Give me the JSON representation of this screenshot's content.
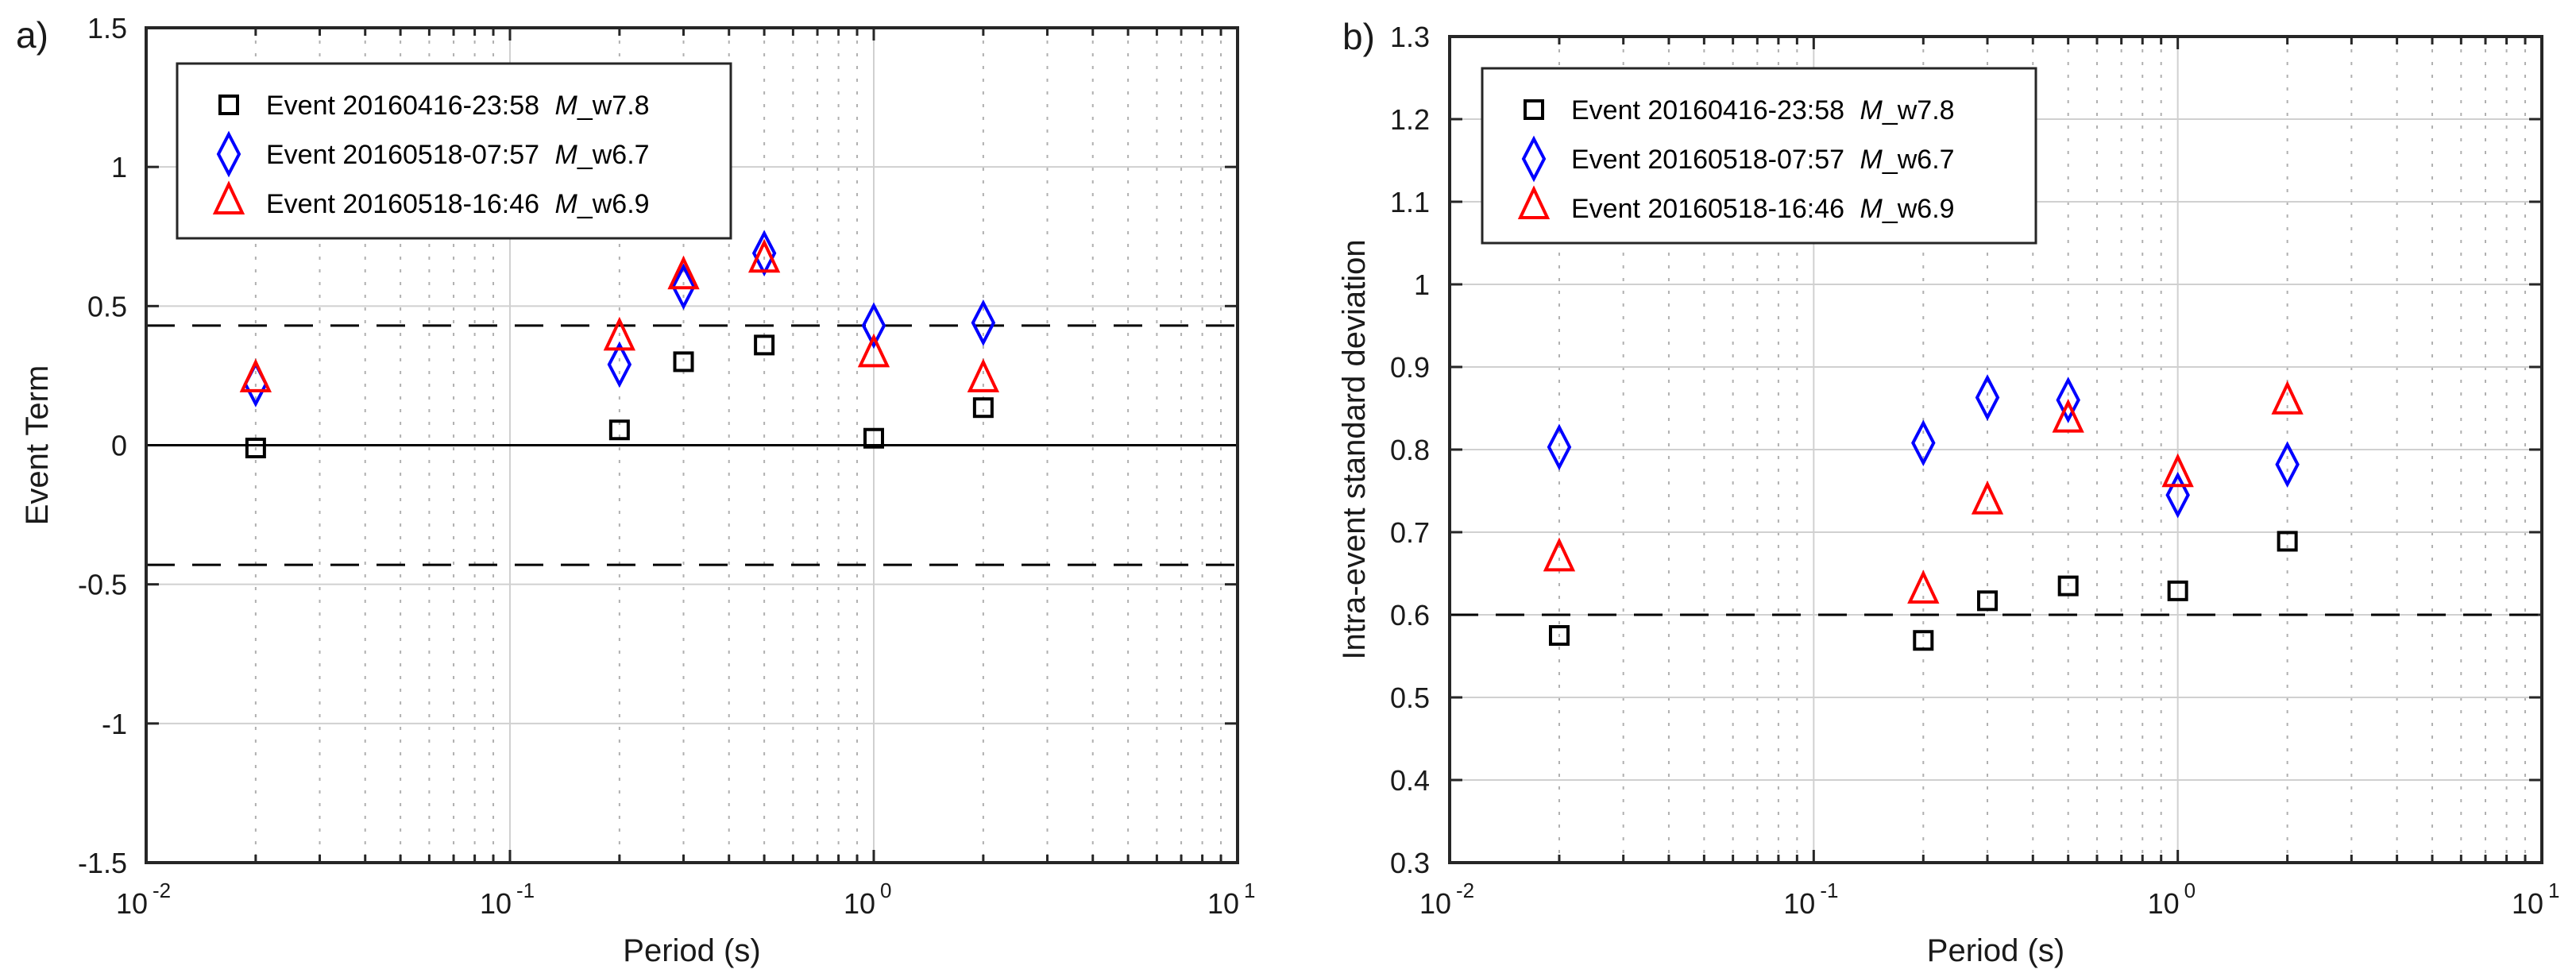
{
  "chart_data": [
    {
      "type": "scatter",
      "panel_label": "a)",
      "title": "",
      "xlabel": "Period (s)",
      "ylabel": "Event Term",
      "xscale": "log",
      "xlim": [
        0.01,
        10
      ],
      "ylim": [
        -1.5,
        1.5
      ],
      "x_ticks": [
        {
          "base": "10",
          "exp": "-2",
          "value": 0.01
        },
        {
          "base": "10",
          "exp": "-1",
          "value": 0.1
        },
        {
          "base": "10",
          "exp": "0",
          "value": 1
        },
        {
          "base": "10",
          "exp": "1",
          "value": 10
        }
      ],
      "y_ticks": [
        {
          "label": "1.5",
          "value": 1.5
        },
        {
          "label": "1",
          "value": 1
        },
        {
          "label": "0.5",
          "value": 0.5
        },
        {
          "label": "0",
          "value": 0
        },
        {
          "label": "-0.5",
          "value": -0.5
        },
        {
          "label": "-1",
          "value": -1
        },
        {
          "label": "-1.5",
          "value": -1.5
        }
      ],
      "grid": true,
      "legend_position": "top-left",
      "reference_lines": [
        {
          "y": 0,
          "style": "solid"
        },
        {
          "y": 0.43,
          "style": "dashed"
        },
        {
          "y": -0.43,
          "style": "dashed"
        }
      ],
      "x": [
        0.02,
        0.2,
        0.3,
        0.5,
        1,
        2
      ],
      "series": [
        {
          "name": "Event 20160416-23:58 ",
          "name_italic": "M",
          "name_suffix": "_w7.8",
          "marker": "square",
          "color": "#000000",
          "values": [
            -0.01,
            0.055,
            0.3,
            0.36,
            0.025,
            0.135
          ]
        },
        {
          "name": "Event 20160518-07:57 ",
          "name_italic": "M",
          "name_suffix": "_w6.7",
          "marker": "diamond",
          "color": "#0000ff",
          "values": [
            0.22,
            0.29,
            0.57,
            0.69,
            0.43,
            0.44
          ]
        },
        {
          "name": "Event 20160518-16:46 ",
          "name_italic": "M",
          "name_suffix": "_w6.9",
          "marker": "triangle",
          "color": "#ff0000",
          "values": [
            0.23,
            0.38,
            0.6,
            0.66,
            0.32,
            0.23
          ]
        }
      ]
    },
    {
      "type": "scatter",
      "panel_label": "b)",
      "title": "",
      "xlabel": "Period (s)",
      "ylabel": "Intra-event standard deviation",
      "xscale": "log",
      "xlim": [
        0.01,
        10
      ],
      "ylim": [
        0.3,
        1.3
      ],
      "x_ticks": [
        {
          "base": "10",
          "exp": "-2",
          "value": 0.01
        },
        {
          "base": "10",
          "exp": "-1",
          "value": 0.1
        },
        {
          "base": "10",
          "exp": "0",
          "value": 1
        },
        {
          "base": "10",
          "exp": "1",
          "value": 10
        }
      ],
      "y_ticks": [
        {
          "label": "1.3",
          "value": 1.3
        },
        {
          "label": "1.2",
          "value": 1.2
        },
        {
          "label": "1.1",
          "value": 1.1
        },
        {
          "label": "1",
          "value": 1.0
        },
        {
          "label": "0.9",
          "value": 0.9
        },
        {
          "label": "0.8",
          "value": 0.8
        },
        {
          "label": "0.7",
          "value": 0.7
        },
        {
          "label": "0.6",
          "value": 0.6
        },
        {
          "label": "0.5",
          "value": 0.5
        },
        {
          "label": "0.4",
          "value": 0.4
        },
        {
          "label": "0.3",
          "value": 0.3
        }
      ],
      "grid": true,
      "legend_position": "top-left",
      "reference_lines": [
        {
          "y": 0.6,
          "style": "dashed"
        }
      ],
      "x": [
        0.02,
        0.2,
        0.3,
        0.5,
        1,
        2
      ],
      "series": [
        {
          "name": "Event 20160416-23:58 ",
          "name_italic": "M",
          "name_suffix": "_w7.8",
          "marker": "square",
          "color": "#000000",
          "values": [
            0.575,
            0.569,
            0.617,
            0.635,
            0.629,
            0.689
          ]
        },
        {
          "name": "Event 20160518-07:57 ",
          "name_italic": "M",
          "name_suffix": "_w6.7",
          "marker": "diamond",
          "color": "#0000ff",
          "values": [
            0.803,
            0.808,
            0.863,
            0.86,
            0.745,
            0.782
          ]
        },
        {
          "name": "Event 20160518-16:46 ",
          "name_italic": "M",
          "name_suffix": "_w6.9",
          "marker": "triangle",
          "color": "#ff0000",
          "values": [
            0.666,
            0.627,
            0.735,
            0.834,
            0.768,
            0.856
          ]
        }
      ]
    }
  ]
}
